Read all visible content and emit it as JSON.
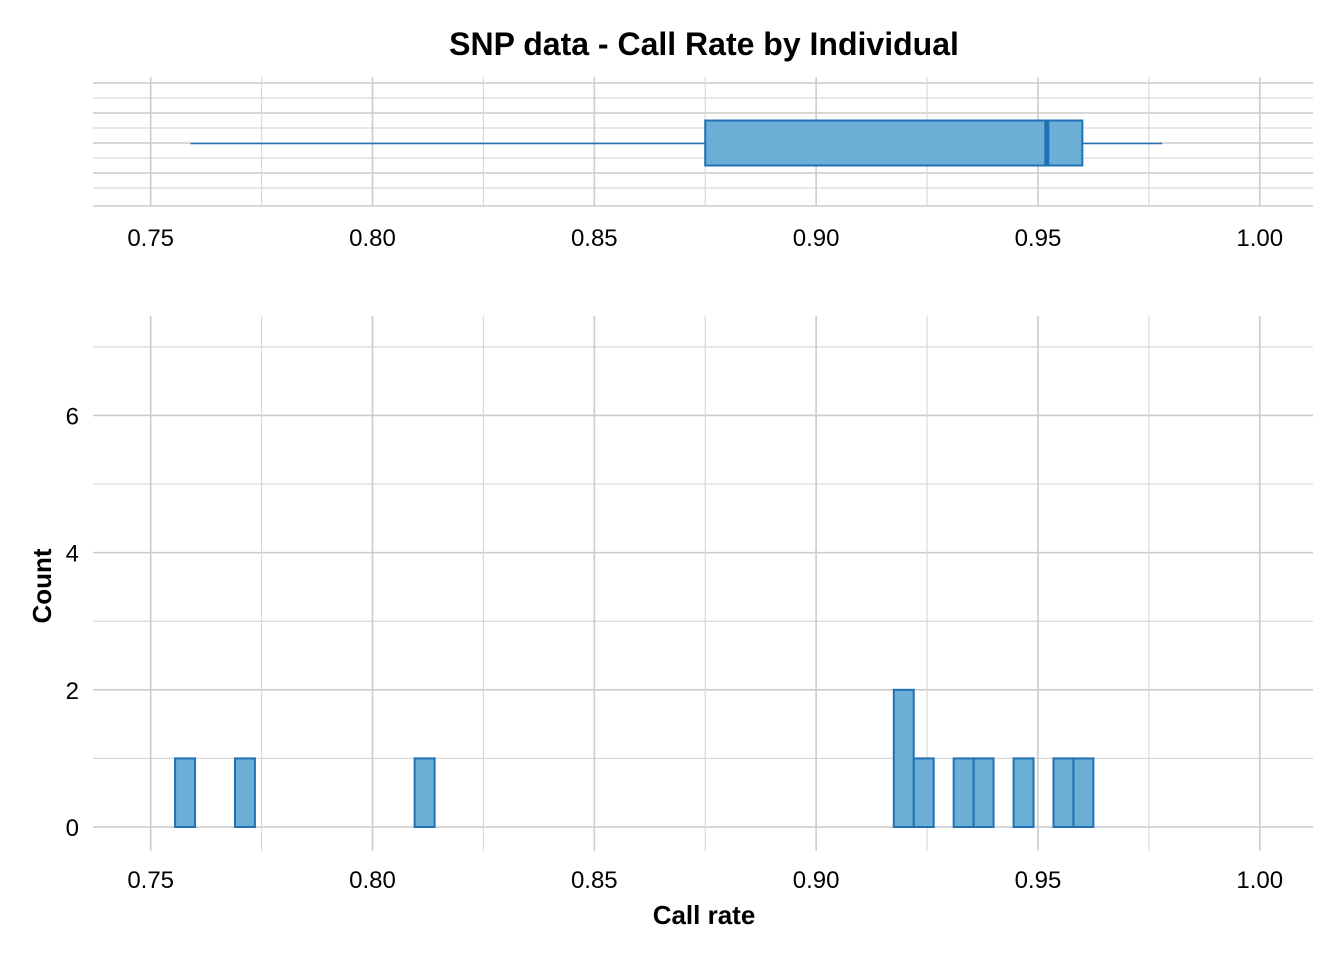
{
  "chart_data": [
    {
      "type": "boxplot",
      "title": "SNP data - Call Rate by Individual",
      "xlim": [
        0.737,
        1.012
      ],
      "x_ticks": [
        "0.75",
        "0.80",
        "0.85",
        "0.90",
        "0.95",
        "1.00"
      ],
      "x_tick_values": [
        0.75,
        0.8,
        0.85,
        0.9,
        0.95,
        1.0
      ],
      "whisker_low": 0.759,
      "q1": 0.875,
      "median": 0.952,
      "q3": 0.96,
      "whisker_high": 0.978,
      "grid": true,
      "color_fill": "#6BAED6",
      "color_line": "#2171B5"
    },
    {
      "type": "histogram",
      "xlabel": "Call rate",
      "ylabel": "Count",
      "xlim": [
        0.737,
        1.012
      ],
      "ylim": [
        -0.35,
        7.45
      ],
      "x_ticks": [
        "0.75",
        "0.80",
        "0.85",
        "0.90",
        "0.95",
        "1.00"
      ],
      "x_tick_values": [
        0.75,
        0.8,
        0.85,
        0.9,
        0.95,
        1.0
      ],
      "y_ticks": [
        "0",
        "2",
        "4",
        "6"
      ],
      "y_tick_values": [
        0,
        2,
        4,
        6
      ],
      "bin_start": 0.7555,
      "bin_width": 0.0045,
      "counts": [
        1,
        0,
        0,
        1,
        0,
        0,
        0,
        0,
        0,
        0,
        0,
        0,
        1,
        0,
        0,
        0,
        0,
        0,
        0,
        0,
        0,
        0,
        0,
        0,
        0,
        0,
        0,
        0,
        0,
        0,
        0,
        0,
        0,
        0,
        0,
        0,
        2,
        1,
        0,
        1,
        1,
        0,
        1,
        0,
        1,
        1,
        0,
        0,
        0,
        0,
        0,
        0,
        0,
        0,
        0,
        0,
        0,
        0,
        0,
        0
      ],
      "grid": true,
      "color_fill": "#6BAED6",
      "color_line": "#2171B5"
    }
  ]
}
